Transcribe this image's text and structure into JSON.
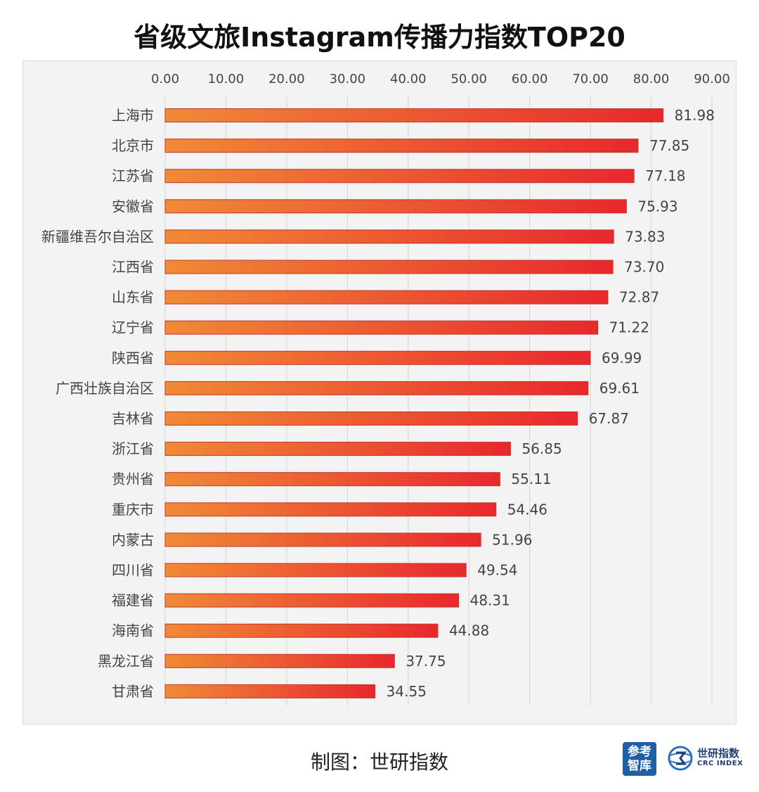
{
  "title": "省级文旅Instagram传播力指数TOP20",
  "footer": {
    "credit": "制图：世研指数",
    "logo_left": "参考智库",
    "logo_right_cn": "世研指数",
    "logo_right_en": "CRC INDEX"
  },
  "colors": {
    "bar_start": "#f08a36",
    "bar_end": "#e8282e",
    "bar_border": "#c0392b",
    "panel_bg": "#f3f3f3",
    "grid": "#d4d4d4",
    "text": "#444444"
  },
  "chart_data": {
    "type": "bar",
    "orientation": "horizontal",
    "title": "省级文旅Instagram传播力指数TOP20",
    "xlabel": "",
    "ylabel": "",
    "xlim": [
      0,
      90
    ],
    "x_ticks": [
      "0.00",
      "10.00",
      "20.00",
      "30.00",
      "40.00",
      "50.00",
      "60.00",
      "70.00",
      "80.00",
      "90.00"
    ],
    "x_axis_position": "top",
    "grid": true,
    "legend": "none",
    "categories": [
      "上海市",
      "北京市",
      "江苏省",
      "安徽省",
      "新疆维吾尔自治区",
      "江西省",
      "山东省",
      "辽宁省",
      "陕西省",
      "广西壮族自治区",
      "吉林省",
      "浙江省",
      "贵州省",
      "重庆市",
      "内蒙古",
      "四川省",
      "福建省",
      "海南省",
      "黑龙江省",
      "甘肃省"
    ],
    "values": [
      81.98,
      77.85,
      77.18,
      75.93,
      73.83,
      73.7,
      72.87,
      71.22,
      69.99,
      69.61,
      67.87,
      56.85,
      55.11,
      54.46,
      51.96,
      49.54,
      48.31,
      44.88,
      37.75,
      34.55
    ],
    "value_labels": [
      "81.98",
      "77.85",
      "77.18",
      "75.93",
      "73.83",
      "73.70",
      "72.87",
      "71.22",
      "69.99",
      "69.61",
      "67.87",
      "56.85",
      "55.11",
      "54.46",
      "51.96",
      "49.54",
      "48.31",
      "44.88",
      "37.75",
      "34.55"
    ]
  }
}
